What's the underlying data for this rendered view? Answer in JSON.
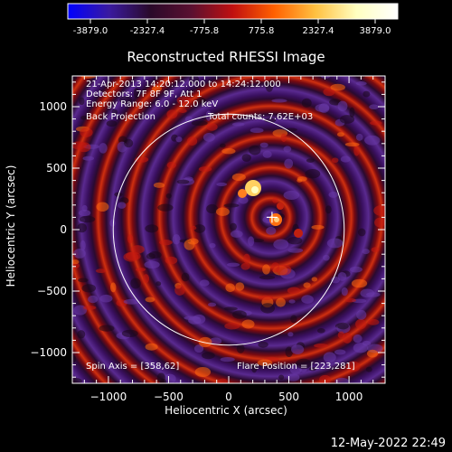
{
  "colorbar": {
    "ticks": [
      "-3879.0",
      "-2327.4",
      "-775.8",
      "775.8",
      "2327.4",
      "3879.0"
    ],
    "stops": [
      "#0000ff",
      "#3a1aa0",
      "#2a0a2a",
      "#5a1030",
      "#c01010",
      "#ff6000",
      "#ffc040",
      "#ffffc0",
      "#ffffff"
    ]
  },
  "header": {
    "title": "Reconstructed RHESSI Image",
    "info_lines": [
      "21-Apr-2013 14:20:12.000 to 14:24:12.000",
      "Detectors: 7F 8F 9F, Att 1",
      "Energy Range: 6.0 - 12.0 keV"
    ],
    "method": "Back Projection",
    "total_counts": "Total counts: 7.62E+03"
  },
  "footer": {
    "spin_axis": "Spin Axis = [358,62]",
    "flare_position": "Flare Position = [223,281]",
    "timestamp": "12-May-2022 22:49"
  },
  "chart_data": {
    "type": "heatmap",
    "title": "Reconstructed RHESSI Image",
    "xlabel": "Heliocentric X (arcsec)",
    "ylabel": "Heliocentric Y (arcsec)",
    "xlim": [
      -1300,
      1300
    ],
    "ylim": [
      -1250,
      1250
    ],
    "xticks": [
      -1000,
      -500,
      0,
      500,
      1000
    ],
    "yticks": [
      -1000,
      -500,
      0,
      500,
      1000
    ],
    "xtick_labels": [
      "−1000",
      "−500",
      "0",
      "500",
      "1000"
    ],
    "ytick_labels": [
      "−1000",
      "−500",
      "0",
      "500",
      "1000"
    ],
    "solar_limb_radius": 960,
    "source_center": [
      350,
      100
    ],
    "marker": [
      360,
      100
    ],
    "colorbar_range": [
      -3879.0,
      3879.0
    ]
  }
}
